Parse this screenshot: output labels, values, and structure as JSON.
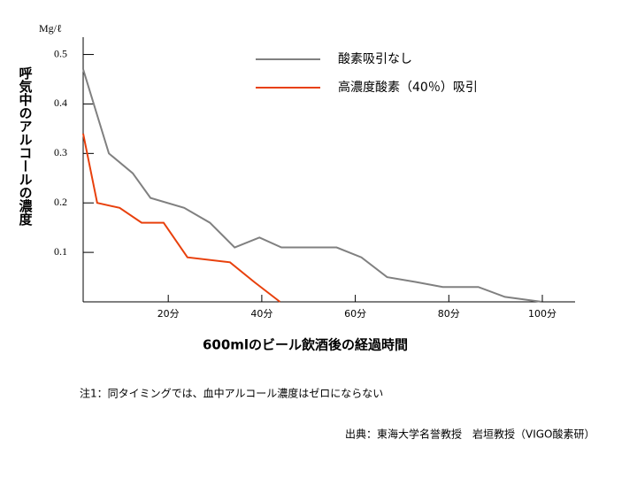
{
  "chart_data": {
    "type": "line",
    "y_unit": "Mg/ℓ",
    "y_axis_label": "呼気中のアルコールの濃度",
    "x_axis_label": "600mlのビール飲酒後の経過時間",
    "note": "注1：同タイミングでは、血中アルコール濃度はゼロにならない",
    "source": "出典：東海大学名誉教授　岩垣教授（VIGO酸素研）",
    "xlim": [
      1.8,
      107
    ],
    "ylim": [
      0,
      0.535
    ],
    "xticks": [
      {
        "value": 20,
        "label": "20分"
      },
      {
        "value": 40,
        "label": "40分"
      },
      {
        "value": 60,
        "label": "60分"
      },
      {
        "value": 80,
        "label": "80分"
      },
      {
        "value": 100,
        "label": "100分"
      }
    ],
    "yticks": [
      0.1,
      0.2,
      0.3,
      0.4,
      0.5
    ],
    "series": [
      {
        "name": "酸素吸引なし",
        "color": "#808080",
        "x": [
          1.8,
          7.3,
          12.4,
          16.2,
          23.4,
          28.9,
          34.2,
          39.5,
          44.2,
          56,
          61.3,
          66.8,
          73,
          78.7,
          86.3,
          92,
          99.9
        ],
        "values": [
          0.47,
          0.3,
          0.26,
          0.21,
          0.19,
          0.16,
          0.11,
          0.13,
          0.11,
          0.11,
          0.09,
          0.05,
          0.04,
          0.03,
          0.03,
          0.01,
          0
        ]
      },
      {
        "name": "高濃度酸素（40％）吸引",
        "color": "#e8400c",
        "x": [
          1.8,
          4.8,
          9.6,
          14.3,
          19,
          24.1,
          33.2,
          38.4,
          43.9
        ],
        "values": [
          0.34,
          0.2,
          0.19,
          0.16,
          0.16,
          0.09,
          0.08,
          0.04,
          0
        ]
      }
    ]
  }
}
